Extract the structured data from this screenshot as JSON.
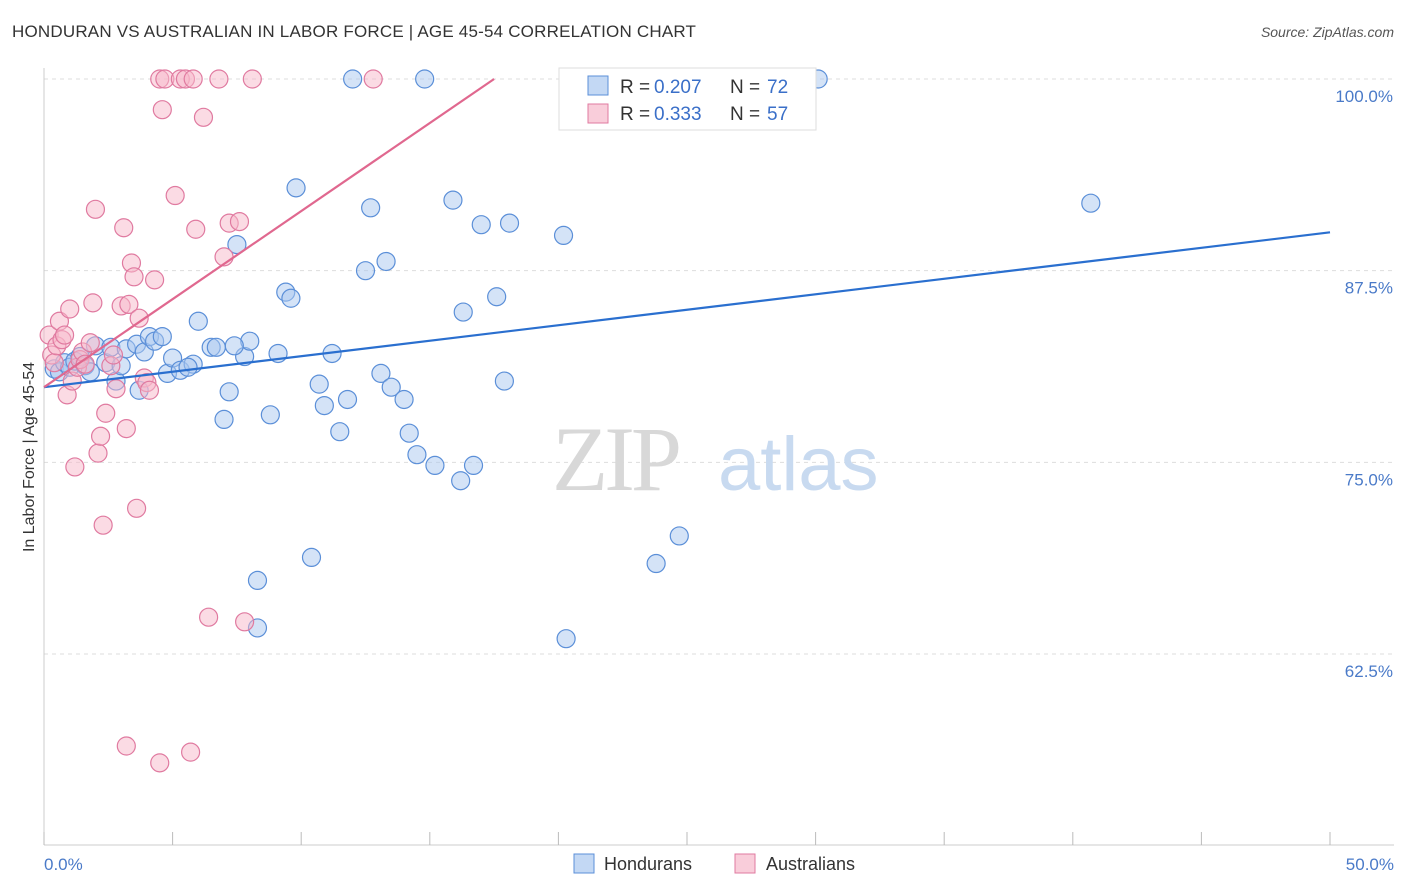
{
  "header": {
    "title": "HONDURAN VS AUSTRALIAN IN LABOR FORCE | AGE 45-54 CORRELATION CHART",
    "source": "Source: ZipAtlas.com"
  },
  "watermark": {
    "zip": "ZIP",
    "atlas": "atlas"
  },
  "chart_data": {
    "type": "scatter",
    "title": "HONDURAN VS AUSTRALIAN IN LABOR FORCE | AGE 45-54 CORRELATION CHART",
    "xlabel": "",
    "ylabel": "In Labor Force | Age 45-54",
    "xlim": [
      0,
      50
    ],
    "ylim": [
      50,
      101.5
    ],
    "x_tick_labels": [
      "0.0%",
      "50.0%"
    ],
    "y_ticks": [
      62.5,
      75.0,
      87.5,
      100.0
    ],
    "y_tick_labels": [
      "62.5%",
      "75.0%",
      "87.5%",
      "100.0%"
    ],
    "grid": true,
    "legend": [
      {
        "name": "Hondurans",
        "r_label": "R =",
        "r": "0.207",
        "n_label": "N =",
        "n": "72",
        "color": "#a9c8ef",
        "stroke": "#5b8fd8"
      },
      {
        "name": "Australians",
        "r_label": "R =",
        "r": "0.333",
        "n_label": "N =",
        "n": "57",
        "color": "#f7b8ca",
        "stroke": "#e07aa0"
      }
    ],
    "series": [
      {
        "name": "Hondurans",
        "color": "#a9c8ef",
        "stroke": "#5b8fd8",
        "trend": {
          "x": [
            0,
            50
          ],
          "y": [
            79.9,
            90.0
          ],
          "color": "#2a6fcf"
        },
        "points": [
          [
            0.4,
            81.1
          ],
          [
            0.6,
            80.9
          ],
          [
            0.8,
            81.5
          ],
          [
            1.0,
            81.2
          ],
          [
            1.2,
            81.6
          ],
          [
            1.4,
            81.9
          ],
          [
            1.6,
            81.3
          ],
          [
            1.8,
            80.9
          ],
          [
            2.0,
            82.6
          ],
          [
            2.4,
            81.5
          ],
          [
            2.6,
            82.5
          ],
          [
            2.8,
            80.3
          ],
          [
            3.0,
            81.3
          ],
          [
            3.2,
            82.4
          ],
          [
            3.6,
            82.7
          ],
          [
            3.7,
            79.7
          ],
          [
            3.9,
            82.2
          ],
          [
            4.1,
            83.2
          ],
          [
            4.3,
            82.9
          ],
          [
            4.6,
            83.2
          ],
          [
            4.8,
            80.8
          ],
          [
            5.0,
            81.8
          ],
          [
            5.3,
            81.0
          ],
          [
            5.8,
            81.4
          ],
          [
            6.0,
            84.2
          ],
          [
            6.5,
            82.5
          ],
          [
            6.7,
            82.5
          ],
          [
            7.0,
            77.8
          ],
          [
            7.2,
            79.6
          ],
          [
            7.5,
            89.2
          ],
          [
            7.8,
            81.9
          ],
          [
            8.0,
            82.9
          ],
          [
            8.3,
            67.3
          ],
          [
            8.3,
            64.2
          ],
          [
            8.8,
            78.1
          ],
          [
            9.1,
            82.1
          ],
          [
            9.4,
            86.1
          ],
          [
            9.6,
            85.7
          ],
          [
            9.8,
            92.9
          ],
          [
            10.4,
            68.8
          ],
          [
            10.7,
            80.1
          ],
          [
            10.9,
            78.7
          ],
          [
            11.2,
            82.1
          ],
          [
            11.5,
            77.0
          ],
          [
            11.8,
            79.1
          ],
          [
            12.0,
            100.0
          ],
          [
            12.5,
            87.5
          ],
          [
            12.7,
            91.6
          ],
          [
            13.1,
            80.8
          ],
          [
            13.3,
            88.1
          ],
          [
            13.5,
            79.9
          ],
          [
            14.0,
            79.1
          ],
          [
            14.2,
            76.9
          ],
          [
            14.5,
            75.5
          ],
          [
            14.8,
            100.0
          ],
          [
            15.2,
            74.8
          ],
          [
            15.9,
            92.1
          ],
          [
            16.2,
            73.8
          ],
          [
            16.3,
            84.8
          ],
          [
            16.7,
            74.8
          ],
          [
            17.0,
            90.5
          ],
          [
            17.6,
            85.8
          ],
          [
            17.9,
            80.3
          ],
          [
            18.1,
            90.6
          ],
          [
            20.2,
            89.8
          ],
          [
            20.3,
            63.5
          ],
          [
            23.8,
            68.4
          ],
          [
            24.7,
            70.2
          ],
          [
            30.1,
            100.0
          ],
          [
            40.7,
            91.9
          ],
          [
            5.6,
            81.2
          ],
          [
            7.4,
            82.6
          ]
        ]
      },
      {
        "name": "Australians",
        "color": "#f7b8ca",
        "stroke": "#e07aa0",
        "trend": {
          "x": [
            0,
            17.5
          ],
          "y": [
            79.9,
            100.0
          ],
          "color": "#e0688f"
        },
        "points": [
          [
            0.2,
            83.3
          ],
          [
            0.3,
            82.0
          ],
          [
            0.4,
            81.5
          ],
          [
            0.5,
            82.6
          ],
          [
            0.6,
            84.2
          ],
          [
            0.7,
            83.0
          ],
          [
            0.8,
            83.3
          ],
          [
            0.9,
            79.4
          ],
          [
            1.0,
            85.0
          ],
          [
            1.1,
            80.3
          ],
          [
            1.2,
            74.7
          ],
          [
            1.3,
            81.2
          ],
          [
            1.4,
            81.7
          ],
          [
            1.5,
            82.2
          ],
          [
            1.6,
            81.4
          ],
          [
            1.8,
            82.8
          ],
          [
            1.9,
            85.4
          ],
          [
            2.0,
            91.5
          ],
          [
            2.1,
            75.6
          ],
          [
            2.2,
            76.7
          ],
          [
            2.3,
            70.9
          ],
          [
            2.4,
            78.2
          ],
          [
            2.6,
            81.3
          ],
          [
            2.7,
            82.0
          ],
          [
            2.8,
            79.8
          ],
          [
            3.0,
            85.2
          ],
          [
            3.1,
            90.3
          ],
          [
            3.2,
            77.2
          ],
          [
            3.3,
            85.3
          ],
          [
            3.4,
            88.0
          ],
          [
            3.5,
            87.1
          ],
          [
            3.6,
            72.0
          ],
          [
            3.7,
            84.4
          ],
          [
            3.9,
            80.5
          ],
          [
            4.0,
            80.2
          ],
          [
            4.1,
            79.7
          ],
          [
            4.3,
            86.9
          ],
          [
            4.5,
            100.0
          ],
          [
            4.6,
            98.0
          ],
          [
            4.7,
            100.0
          ],
          [
            5.1,
            92.4
          ],
          [
            5.3,
            100.0
          ],
          [
            5.5,
            100.0
          ],
          [
            5.8,
            100.0
          ],
          [
            5.9,
            90.2
          ],
          [
            6.2,
            97.5
          ],
          [
            6.4,
            64.9
          ],
          [
            6.8,
            100.0
          ],
          [
            7.0,
            88.4
          ],
          [
            7.2,
            90.6
          ],
          [
            7.6,
            90.7
          ],
          [
            7.8,
            64.6
          ],
          [
            8.1,
            100.0
          ],
          [
            3.2,
            56.5
          ],
          [
            4.5,
            55.4
          ],
          [
            5.7,
            56.1
          ],
          [
            12.8,
            100.0
          ]
        ]
      }
    ]
  }
}
